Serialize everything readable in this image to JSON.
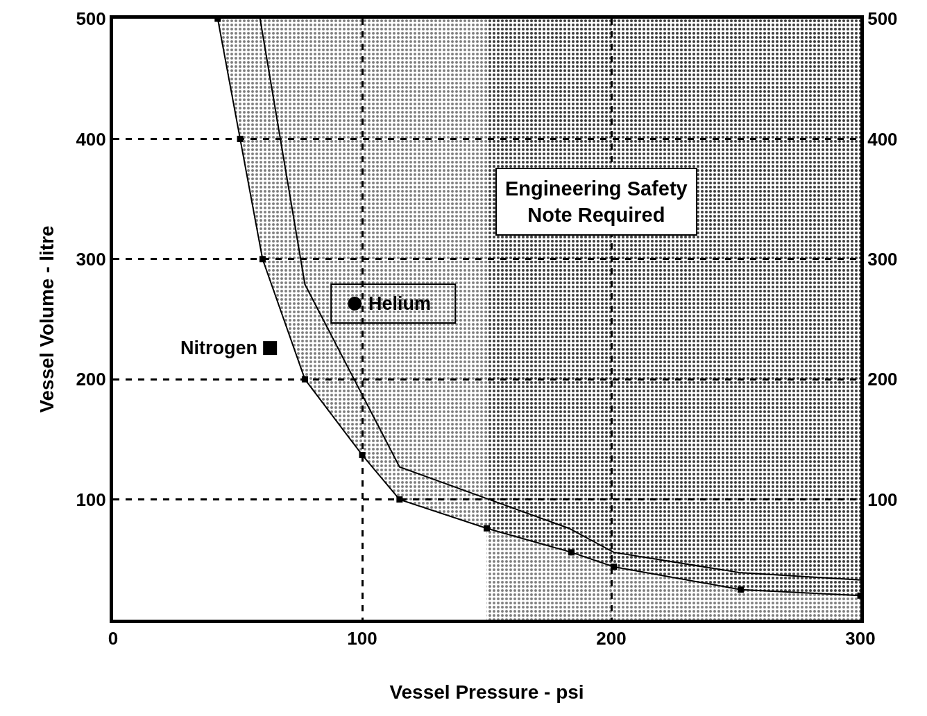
{
  "chart_data": {
    "type": "line",
    "xlabel": "Vessel Pressure - psi",
    "ylabel": "Vessel Volume - litre",
    "xlim": [
      0,
      300
    ],
    "xticks": [
      0,
      100,
      200,
      300
    ],
    "ylim": [
      0,
      500
    ],
    "yticks": [
      100,
      200,
      300,
      400,
      500
    ],
    "y2lim": [
      0,
      500
    ],
    "y2ticks": [
      100,
      200,
      300,
      400,
      500
    ],
    "grid": true,
    "series": [
      {
        "type": "line",
        "color": "#000000",
        "marker": "square",
        "x": [
          42,
          51,
          60,
          77,
          100,
          115,
          150,
          184,
          201,
          252,
          300
        ],
        "values": [
          500,
          400,
          300,
          200,
          137,
          100,
          76,
          56,
          44,
          25,
          20
        ],
        "lower": [
          500,
          400,
          300,
          200,
          137,
          100,
          76,
          56,
          44,
          25,
          20
        ],
        "upper": [
          500,
          500,
          500,
          500,
          500,
          500,
          500,
          500,
          500,
          500,
          500
        ]
      },
      {
        "color": "#000000",
        "marker": "none",
        "x": [
          59,
          77,
          115,
          183,
          201,
          252,
          300
        ],
        "values": [
          500,
          279,
          127,
          76,
          56,
          39,
          33
        ]
      },
      {
        "type": "scatter",
        "name": "Nitrogen",
        "color": "#000000",
        "marker": "square",
        "x": [
          63
        ],
        "values": [
          226
        ]
      },
      {
        "type": "scatter",
        "name": "Helium",
        "color": "#000000",
        "marker": "circle",
        "x": [
          97
        ],
        "values": [
          263
        ]
      }
    ],
    "bands": [
      {
        "axis": "x",
        "from": 150,
        "to": 300
      }
    ],
    "annotations": [
      "Engineering Safety Note Required"
    ]
  }
}
